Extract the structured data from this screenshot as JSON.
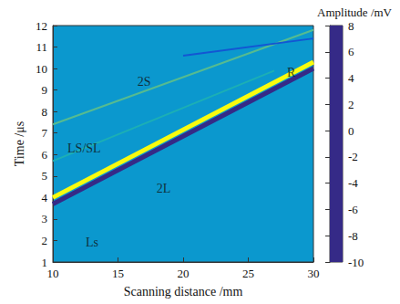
{
  "chart_data": {
    "type": "line",
    "xlabel": "Scanning distance /mm",
    "ylabel": "Time /μs",
    "xlim": [
      10,
      30
    ],
    "ylim": [
      1,
      12
    ],
    "xticks": [
      10,
      15,
      20,
      25,
      30
    ],
    "yticks": [
      1,
      2,
      3,
      4,
      5,
      6,
      7,
      8,
      9,
      10,
      11,
      12
    ],
    "background": -4,
    "series": [
      {
        "x": [
          10,
          30
        ],
        "values": [
          3.7,
          10.0
        ],
        "amplitude": -10
      },
      {
        "x": [
          10,
          30
        ],
        "values": [
          4.0,
          10.3
        ],
        "amplitude": 8
      },
      {
        "x": [
          10,
          30
        ],
        "values": [
          7.4,
          11.8
        ],
        "amplitude": 0
      },
      {
        "x": [
          10,
          27
        ],
        "values": [
          5.7,
          9.9
        ],
        "amplitude": -2
      },
      {
        "x": [
          20,
          30
        ],
        "values": [
          10.6,
          11.4
        ],
        "amplitude": -8
      }
    ],
    "annotations": [
      {
        "text": "Ls",
        "x": 13,
        "y": 1.9
      },
      {
        "text": "LS/SL",
        "x": 12.4,
        "y": 6.3
      },
      {
        "text": "2S",
        "x": 17,
        "y": 9.4
      },
      {
        "text": "2L",
        "x": 18.5,
        "y": 4.4
      },
      {
        "text": "R",
        "x": 28.3,
        "y": 9.8
      }
    ],
    "colorbar": {
      "title": "Amplitude /mV",
      "range": [
        -10,
        8
      ],
      "ticks": [
        -10,
        -8,
        -6,
        -4,
        -2,
        0,
        2,
        4,
        6,
        8
      ]
    }
  }
}
